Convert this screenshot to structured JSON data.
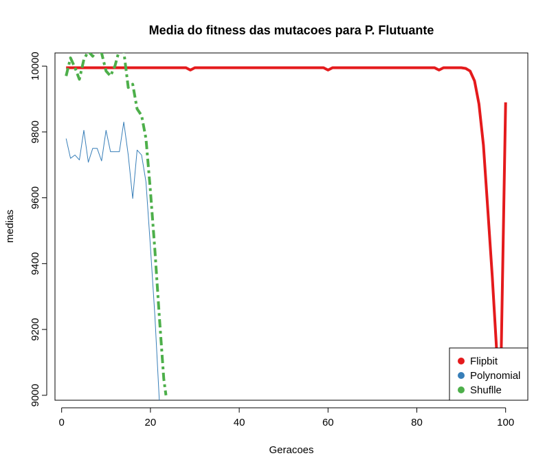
{
  "chart_data": {
    "type": "line",
    "title": "Media do fitness das mutacoes para P. Flutuante",
    "xlabel": "Geracoes",
    "ylabel": "medias",
    "xlim": [
      -1.5,
      105
    ],
    "ylim": [
      8985,
      10040
    ],
    "x_ticks": [
      0,
      20,
      40,
      60,
      80,
      100
    ],
    "y_ticks": [
      9000,
      9200,
      9400,
      9600,
      9800,
      10000
    ],
    "grid": false,
    "legend_position": "bottom-right",
    "series": [
      {
        "name": "Flipbit",
        "color": "#e41a1c",
        "style": "solid-thick",
        "x": [
          1,
          27,
          28,
          29,
          30,
          59,
          60,
          61,
          84,
          85,
          86,
          90,
          91,
          92,
          93,
          94,
          95,
          96,
          97,
          98,
          99,
          100
        ],
        "y": [
          9995,
          9995,
          9995,
          9988,
          9995,
          9995,
          9988,
          9995,
          9995,
          9988,
          9995,
          9995,
          9993,
          9985,
          9955,
          9885,
          9760,
          9560,
          9360,
          9130,
          9120,
          9890
        ]
      },
      {
        "name": "Polynomial",
        "color": "#377eb8",
        "style": "solid-thin",
        "x": [
          1,
          2,
          3,
          4,
          5,
          6,
          7,
          8,
          9,
          10,
          11,
          12,
          13,
          14,
          15,
          16,
          17,
          18,
          19,
          20,
          21,
          22
        ],
        "y": [
          9780,
          9720,
          9730,
          9715,
          9805,
          9708,
          9750,
          9750,
          9712,
          9805,
          9740,
          9740,
          9740,
          9830,
          9730,
          9598,
          9745,
          9730,
          9648,
          9450,
          9240,
          8985
        ]
      },
      {
        "name": "Shuflle",
        "color": "#4daf4a",
        "style": "dash-dot-thick",
        "x": [
          1,
          2,
          3,
          4,
          5,
          6,
          7,
          8,
          9,
          10,
          11,
          12,
          13,
          14,
          15,
          16,
          17,
          18,
          19,
          20,
          21,
          22,
          23,
          23.5
        ],
        "y": [
          9970,
          10025,
          9995,
          9960,
          10020,
          10045,
          10030,
          10050,
          10040,
          9985,
          9970,
          10000,
          10050,
          10045,
          9935,
          9945,
          9870,
          9850,
          9780,
          9620,
          9440,
          9240,
          9050,
          9000
        ]
      }
    ]
  }
}
